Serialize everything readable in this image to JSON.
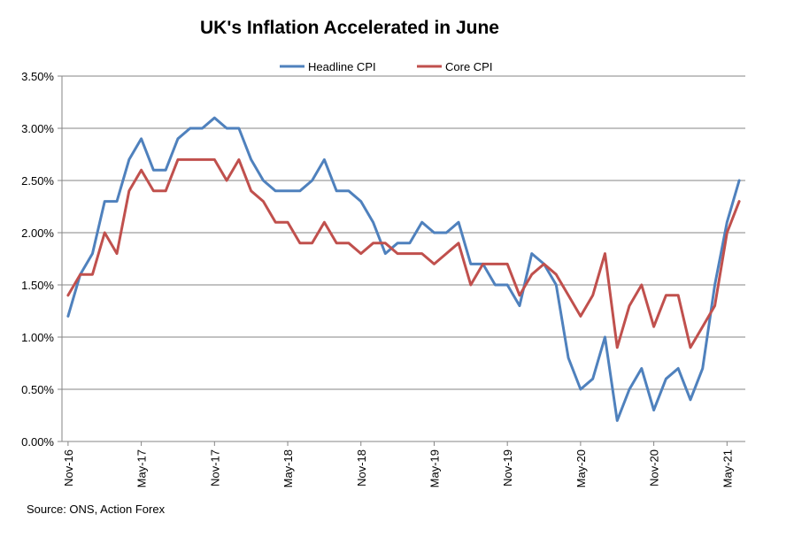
{
  "chart_data": {
    "type": "line",
    "title": "UK's Inflation Accelerated  in June",
    "source": "Source: ONS, Action Forex",
    "xlabel": "",
    "ylabel": "",
    "ylim": [
      0,
      3.5
    ],
    "y_ticks": [
      "0.00%",
      "0.50%",
      "1.00%",
      "1.50%",
      "2.00%",
      "2.50%",
      "3.00%",
      "3.50%"
    ],
    "y_tick_values": [
      0,
      0.5,
      1.0,
      1.5,
      2.0,
      2.5,
      3.0,
      3.5
    ],
    "x_tick_labels": [
      {
        "index": 0,
        "label": "Nov-16"
      },
      {
        "index": 6,
        "label": "May-17"
      },
      {
        "index": 12,
        "label": "Nov-17"
      },
      {
        "index": 18,
        "label": "May-18"
      },
      {
        "index": 24,
        "label": "Nov-18"
      },
      {
        "index": 30,
        "label": "May-19"
      },
      {
        "index": 36,
        "label": "Nov-19"
      },
      {
        "index": 42,
        "label": "May-20"
      },
      {
        "index": 48,
        "label": "Nov-20"
      },
      {
        "index": 54,
        "label": "May-21"
      }
    ],
    "categories": [
      "Nov-16",
      "Dec-16",
      "Jan-17",
      "Feb-17",
      "Mar-17",
      "Apr-17",
      "May-17",
      "Jun-17",
      "Jul-17",
      "Aug-17",
      "Sep-17",
      "Oct-17",
      "Nov-17",
      "Dec-17",
      "Jan-18",
      "Feb-18",
      "Mar-18",
      "Apr-18",
      "May-18",
      "Jun-18",
      "Jul-18",
      "Aug-18",
      "Sep-18",
      "Oct-18",
      "Nov-18",
      "Dec-18",
      "Jan-19",
      "Feb-19",
      "Mar-19",
      "Apr-19",
      "May-19",
      "Jun-19",
      "Jul-19",
      "Aug-19",
      "Sep-19",
      "Oct-19",
      "Nov-19",
      "Dec-19",
      "Jan-20",
      "Feb-20",
      "Mar-20",
      "Apr-20",
      "May-20",
      "Jun-20",
      "Jul-20",
      "Aug-20",
      "Sep-20",
      "Oct-20",
      "Nov-20",
      "Dec-20",
      "Jan-21",
      "Feb-21",
      "Mar-21",
      "Apr-21",
      "May-21",
      "Jun-21"
    ],
    "series": [
      {
        "name": "Headline CPI",
        "color": "#4F81BD",
        "values": [
          1.2,
          1.6,
          1.8,
          2.3,
          2.3,
          2.7,
          2.9,
          2.6,
          2.6,
          2.9,
          3.0,
          3.0,
          3.1,
          3.0,
          3.0,
          2.7,
          2.5,
          2.4,
          2.4,
          2.4,
          2.5,
          2.7,
          2.4,
          2.4,
          2.3,
          2.1,
          1.8,
          1.9,
          1.9,
          2.1,
          2.0,
          2.0,
          2.1,
          1.7,
          1.7,
          1.5,
          1.5,
          1.3,
          1.8,
          1.7,
          1.5,
          0.8,
          0.5,
          0.6,
          1.0,
          0.2,
          0.5,
          0.7,
          0.3,
          0.6,
          0.7,
          0.4,
          0.7,
          1.5,
          2.1,
          2.5
        ]
      },
      {
        "name": "Core CPI",
        "color": "#C0504D",
        "values": [
          1.4,
          1.6,
          1.6,
          2.0,
          1.8,
          2.4,
          2.6,
          2.4,
          2.4,
          2.7,
          2.7,
          2.7,
          2.7,
          2.5,
          2.7,
          2.4,
          2.3,
          2.1,
          2.1,
          1.9,
          1.9,
          2.1,
          1.9,
          1.9,
          1.8,
          1.9,
          1.9,
          1.8,
          1.8,
          1.8,
          1.7,
          1.8,
          1.9,
          1.5,
          1.7,
          1.7,
          1.7,
          1.4,
          1.6,
          1.7,
          1.6,
          1.4,
          1.2,
          1.4,
          1.8,
          0.9,
          1.3,
          1.5,
          1.1,
          1.4,
          1.4,
          0.9,
          1.1,
          1.3,
          2.0,
          2.3
        ]
      }
    ]
  }
}
